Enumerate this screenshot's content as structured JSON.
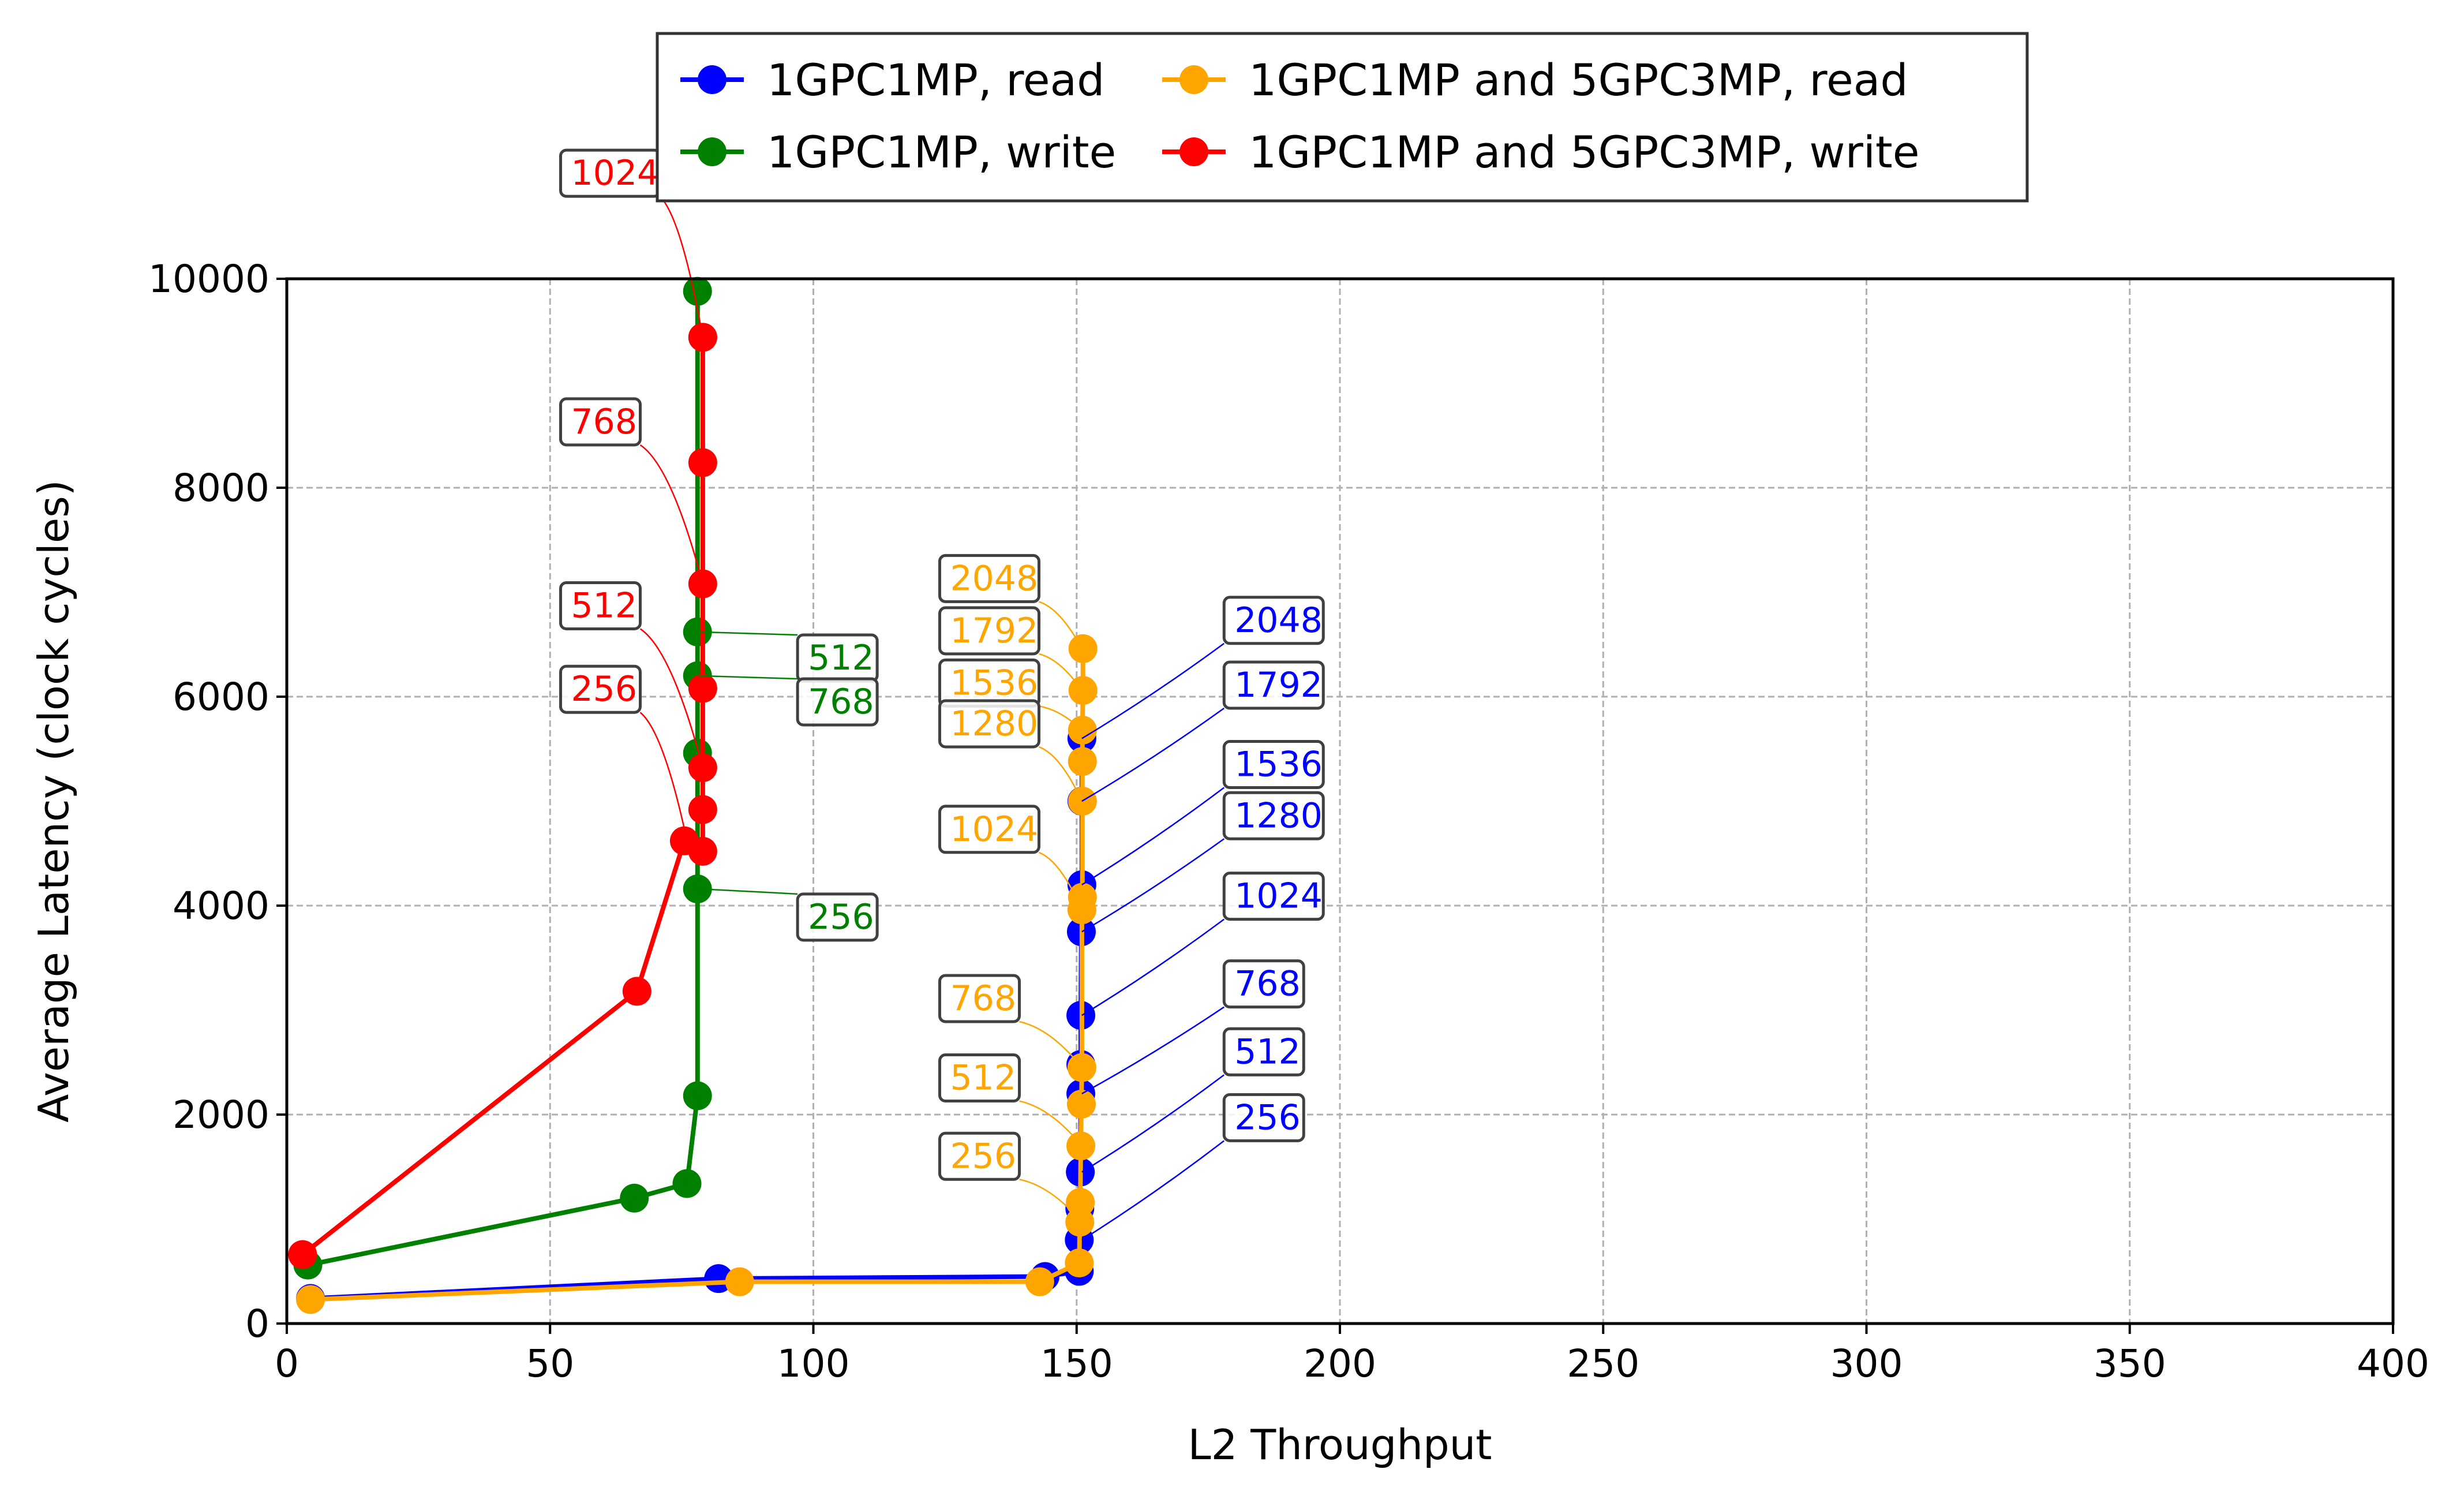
{
  "chart_data": {
    "type": "line",
    "title": "",
    "xlabel": "L2 Throughput",
    "ylabel": "Average Latency (clock cycles)",
    "xlim": [
      0,
      400
    ],
    "ylim": [
      0,
      10000
    ],
    "xticks": [
      0,
      50,
      100,
      150,
      200,
      250,
      300,
      350,
      400
    ],
    "yticks": [
      0,
      2000,
      4000,
      6000,
      8000,
      10000
    ],
    "grid": true,
    "legend_position": "top-center-outside",
    "series": [
      {
        "name": "1GPC1MP, read",
        "color": "#0000ff",
        "x": [
          4.5,
          82,
          144,
          150.5,
          150.5,
          150.6,
          150.7,
          150.8,
          150.8,
          150.8,
          150.9,
          151,
          151,
          151
        ],
        "y": [
          240,
          430,
          450,
          500,
          800,
          1100,
          1450,
          2200,
          2480,
          2950,
          3750,
          4200,
          5000,
          5600
        ]
      },
      {
        "name": "1GPC1MP, write",
        "color": "#008000",
        "x": [
          4,
          66,
          76,
          78,
          78,
          78,
          78,
          78,
          78
        ],
        "y": [
          560,
          1200,
          1340,
          2180,
          4160,
          5460,
          6200,
          6620,
          9880
        ]
      },
      {
        "name": "1GPC1MP and 5GPC3MP, read",
        "color": "#ffa500",
        "x": [
          4.5,
          86,
          143,
          150.5,
          150.6,
          150.7,
          150.8,
          150.9,
          151,
          151,
          151.1,
          151.1,
          151.1,
          151.1,
          151.2,
          151.2
        ],
        "y": [
          230,
          400,
          400,
          580,
          970,
          1160,
          1700,
          2100,
          2450,
          3960,
          4080,
          5000,
          5380,
          5680,
          6060,
          6460
        ]
      },
      {
        "name": "1GPC1MP and 5GPC3MP, write",
        "color": "#ff0000",
        "x": [
          3,
          66.5,
          75.5,
          79,
          79,
          79,
          79,
          79,
          79,
          79,
          79
        ],
        "y": [
          660,
          3180,
          4620,
          4520,
          4920,
          5320,
          6080,
          7080,
          8240,
          9440,
          9440
        ]
      }
    ],
    "annotations": [
      {
        "text": "1024",
        "series": "1GPC1MP and 5GPC3MP, write",
        "color": "#ff0000",
        "point": [
          79,
          9440
        ],
        "label": [
          52,
          10900
        ]
      },
      {
        "text": "768",
        "series": "1GPC1MP and 5GPC3MP, write",
        "color": "#ff0000",
        "point": [
          79,
          7080
        ],
        "label": [
          52,
          8520
        ]
      },
      {
        "text": "512",
        "series": "1GPC1MP and 5GPC3MP, write",
        "color": "#ff0000",
        "point": [
          79,
          5320
        ],
        "label": [
          52,
          6760
        ]
      },
      {
        "text": "256",
        "series": "1GPC1MP and 5GPC3MP, write",
        "color": "#ff0000",
        "point": [
          76,
          4620
        ],
        "label": [
          52,
          5960
        ]
      },
      {
        "text": "512",
        "series": "1GPC1MP, write",
        "color": "#008000",
        "point": [
          78,
          6620
        ],
        "label": [
          97,
          6260
        ]
      },
      {
        "text": "768",
        "series": "1GPC1MP, write",
        "color": "#008000",
        "point": [
          78,
          6200
        ],
        "label": [
          97,
          5840
        ]
      },
      {
        "text": "256",
        "series": "1GPC1MP, write",
        "color": "#008000",
        "point": [
          78,
          4160
        ],
        "label": [
          97,
          3780
        ]
      },
      {
        "text": "2048",
        "series": "1GPC1MP and 5GPC3MP, read",
        "color": "#ffa500",
        "point": [
          151,
          6460
        ],
        "label": [
          124,
          7020
        ]
      },
      {
        "text": "1792",
        "series": "1GPC1MP and 5GPC3MP, read",
        "color": "#ffa500",
        "point": [
          151,
          6060
        ],
        "label": [
          124,
          6520
        ]
      },
      {
        "text": "1536",
        "series": "1GPC1MP and 5GPC3MP, read",
        "color": "#ffa500",
        "point": [
          151,
          5680
        ],
        "label": [
          124,
          6020
        ]
      },
      {
        "text": "1280",
        "series": "1GPC1MP and 5GPC3MP, read",
        "color": "#ffa500",
        "point": [
          151,
          5000
        ],
        "label": [
          124,
          5630
        ]
      },
      {
        "text": "1024",
        "series": "1GPC1MP and 5GPC3MP, read",
        "color": "#ffa500",
        "point": [
          151,
          3960
        ],
        "label": [
          124,
          4620
        ]
      },
      {
        "text": "768",
        "series": "1GPC1MP and 5GPC3MP, read",
        "color": "#ffa500",
        "point": [
          151,
          2450
        ],
        "label": [
          124,
          3000
        ]
      },
      {
        "text": "512",
        "series": "1GPC1MP and 5GPC3MP, read",
        "color": "#ffa500",
        "point": [
          151,
          1700
        ],
        "label": [
          124,
          2240
        ]
      },
      {
        "text": "256",
        "series": "1GPC1MP and 5GPC3MP, read",
        "color": "#ffa500",
        "point": [
          151,
          970
        ],
        "label": [
          124,
          1490
        ]
      },
      {
        "text": "2048",
        "series": "1GPC1MP, read",
        "color": "#0000ff",
        "point": [
          151,
          5600
        ],
        "label": [
          178,
          6620
        ]
      },
      {
        "text": "1792",
        "series": "1GPC1MP, read",
        "color": "#0000ff",
        "point": [
          151,
          5000
        ],
        "label": [
          178,
          6000
        ]
      },
      {
        "text": "1536",
        "series": "1GPC1MP, read",
        "color": "#0000ff",
        "point": [
          151,
          4200
        ],
        "label": [
          178,
          5240
        ]
      },
      {
        "text": "1280",
        "series": "1GPC1MP, read",
        "color": "#0000ff",
        "point": [
          151,
          3750
        ],
        "label": [
          178,
          4750
        ]
      },
      {
        "text": "1024",
        "series": "1GPC1MP, read",
        "color": "#0000ff",
        "point": [
          151,
          2950
        ],
        "label": [
          178,
          3980
        ]
      },
      {
        "text": "768",
        "series": "1GPC1MP, read",
        "color": "#0000ff",
        "point": [
          151,
          2200
        ],
        "label": [
          178,
          3140
        ]
      },
      {
        "text": "512",
        "series": "1GPC1MP, read",
        "color": "#0000ff",
        "point": [
          151,
          1450
        ],
        "label": [
          178,
          2490
        ]
      },
      {
        "text": "256",
        "series": "1GPC1MP, read",
        "color": "#0000ff",
        "point": [
          151,
          800
        ],
        "label": [
          178,
          1860
        ]
      }
    ]
  }
}
